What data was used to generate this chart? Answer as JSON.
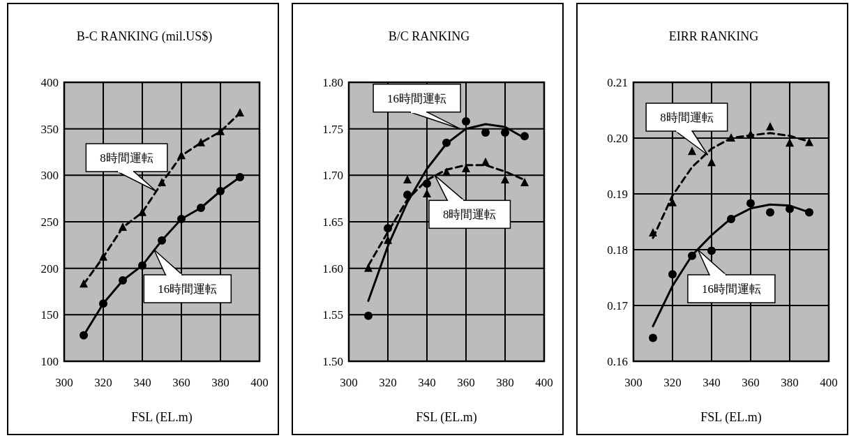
{
  "chart_data": [
    {
      "type": "line",
      "title": "B-C RANKING (mil.US$)",
      "xlabel": "FSL (EL.m)",
      "xlim": [
        300,
        400
      ],
      "xticks": [
        300,
        320,
        340,
        360,
        380,
        400
      ],
      "ylim": [
        100,
        400
      ],
      "yticks": [
        100,
        150,
        200,
        250,
        300,
        350,
        400
      ],
      "grid": true,
      "x": [
        310,
        320,
        330,
        340,
        350,
        360,
        370,
        380,
        390
      ],
      "series": [
        {
          "type": "line",
          "marker": "triangle",
          "line_style": "dashed",
          "color": "#000000",
          "values": [
            183,
            212,
            244,
            260,
            292,
            321,
            335,
            347,
            367
          ]
        },
        {
          "type": "line",
          "marker": "circle",
          "line_style": "solid",
          "color": "#000000",
          "values": [
            128,
            162,
            187,
            203,
            230,
            253,
            265,
            283,
            298
          ]
        }
      ],
      "annotations": [
        {
          "text": "8時間運転",
          "x": 347,
          "y": 283
        },
        {
          "text": "16時間運転",
          "x": 346,
          "y": 220
        }
      ]
    },
    {
      "type": "line",
      "title": "B/C RANKING",
      "xlabel": "FSL (EL.m)",
      "xlim": [
        300,
        400
      ],
      "xticks": [
        300,
        320,
        340,
        360,
        380,
        400
      ],
      "ylim": [
        1.5,
        1.8
      ],
      "yticks": [
        {
          "value": 1.5,
          "label": "1.50"
        },
        1.55,
        {
          "value": 1.6,
          "label": "1.60"
        },
        1.65,
        {
          "value": 1.7,
          "label": "1.70"
        },
        1.75,
        {
          "value": 1.8,
          "label": "1.80"
        }
      ],
      "grid": true,
      "x": [
        310,
        320,
        330,
        340,
        350,
        360,
        370,
        380,
        390
      ],
      "series": [
        {
          "type": "scatter",
          "marker": "triangle",
          "color": "#000000",
          "values": [
            1.6,
            1.63,
            1.695,
            1.68,
            1.703,
            1.707,
            1.714,
            1.695,
            1.692
          ]
        },
        {
          "type": "scatter",
          "marker": "circle",
          "color": "#000000",
          "values": [
            1.549,
            1.643,
            1.679,
            1.691,
            1.735,
            1.758,
            1.746,
            1.746,
            1.742
          ]
        },
        {
          "type": "line",
          "marker": "none",
          "line_style": "dashed",
          "color": "#000000",
          "x": [
            310,
            320,
            330,
            340,
            350,
            360,
            370,
            380,
            390
          ],
          "values": [
            1.603,
            1.639,
            1.674,
            1.695,
            1.706,
            1.711,
            1.711,
            1.704,
            1.695
          ]
        },
        {
          "type": "line",
          "marker": "none",
          "line_style": "solid",
          "color": "#000000",
          "x": [
            310,
            320,
            330,
            340,
            350,
            360,
            370,
            380,
            390
          ],
          "values": [
            1.565,
            1.624,
            1.671,
            1.707,
            1.734,
            1.75,
            1.755,
            1.752,
            1.74
          ]
        }
      ],
      "annotations": [
        {
          "text": "16時間運転",
          "x": 357,
          "y": 1.75
        },
        {
          "text": "8時間運転",
          "x": 344,
          "y": 1.7
        }
      ]
    },
    {
      "type": "line",
      "title": "EIRR RANKING",
      "xlabel": "FSL (EL.m)",
      "xlim": [
        300,
        400
      ],
      "xticks": [
        300,
        320,
        340,
        360,
        380,
        400
      ],
      "ylim": [
        0.16,
        0.21
      ],
      "yticks": [
        0.16,
        0.17,
        0.18,
        0.19,
        {
          "value": 0.2,
          "label": "0.20"
        },
        0.21
      ],
      "grid": true,
      "x": [
        310,
        320,
        330,
        340,
        350,
        360,
        370,
        380,
        390
      ],
      "series": [
        {
          "type": "scatter",
          "marker": "triangle",
          "color": "#000000",
          "values": [
            0.183,
            0.1884,
            0.1976,
            0.1956,
            0.2,
            0.2006,
            0.202,
            0.1991,
            0.1992
          ]
        },
        {
          "type": "scatter",
          "marker": "circle",
          "color": "#000000",
          "values": [
            0.1642,
            0.1756,
            0.1789,
            0.1798,
            0.1855,
            0.1883,
            0.1867,
            0.1873,
            0.1867
          ]
        },
        {
          "type": "line",
          "marker": "none",
          "line_style": "dashed",
          "color": "#000000",
          "x": [
            310,
            320,
            330,
            340,
            350,
            360,
            370,
            380,
            390
          ],
          "values": [
            0.1821,
            0.1897,
            0.1948,
            0.1981,
            0.2,
            0.2005,
            0.2009,
            0.2004,
            0.1994
          ]
        },
        {
          "type": "line",
          "marker": "none",
          "line_style": "solid",
          "color": "#000000",
          "x": [
            310,
            320,
            330,
            340,
            350,
            360,
            370,
            380,
            390
          ],
          "values": [
            0.1663,
            0.1735,
            0.179,
            0.1826,
            0.1856,
            0.1874,
            0.1881,
            0.1879,
            0.1867
          ]
        }
      ],
      "annotations": [
        {
          "text": "8時間運転",
          "x": 338,
          "y": 0.197
        },
        {
          "text": "16時間運転",
          "x": 333,
          "y": 0.18
        }
      ]
    }
  ]
}
